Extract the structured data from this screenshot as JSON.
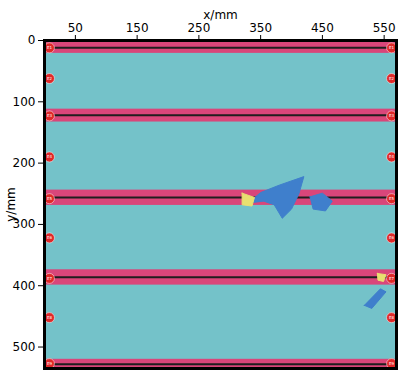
{
  "chart_data": {
    "type": "image",
    "xlabel": "x/mm",
    "ylabel": "y/mm",
    "xlim": [
      0,
      570
    ],
    "ylim": [
      0,
      535
    ],
    "xticks": [
      50,
      150,
      250,
      350,
      450,
      550
    ],
    "yticks": [
      0,
      100,
      200,
      300,
      400,
      500
    ],
    "background": "#74c2c9",
    "bands": {
      "color": "#d9467a",
      "line_color": "#1e1e1e",
      "ranges": [
        [
          3,
          21
        ],
        [
          112,
          133
        ],
        [
          244,
          269
        ],
        [
          374,
          399
        ],
        [
          520,
          535
        ]
      ],
      "lines": [
        12,
        122,
        256,
        386,
        528
      ]
    },
    "regions": [
      {
        "color": "#3f7fcc",
        "points": [
          [
            330,
            265
          ],
          [
            350,
            248
          ],
          [
            380,
            236
          ],
          [
            420,
            222
          ],
          [
            412,
            250
          ],
          [
            400,
            275
          ],
          [
            385,
            290
          ],
          [
            372,
            268
          ],
          [
            355,
            262
          ]
        ]
      },
      {
        "color": "#3f7fcc",
        "points": [
          [
            430,
            255
          ],
          [
            450,
            249
          ],
          [
            466,
            262
          ],
          [
            455,
            278
          ],
          [
            435,
            275
          ]
        ]
      },
      {
        "color": "#e8e070",
        "points": [
          [
            320,
            249
          ],
          [
            340,
            256
          ],
          [
            336,
            270
          ],
          [
            320,
            268
          ]
        ]
      },
      {
        "color": "#3f7fcc",
        "points": [
          [
            518,
            432
          ],
          [
            544,
            405
          ],
          [
            553,
            410
          ],
          [
            530,
            437
          ]
        ]
      },
      {
        "color": "#e8e070",
        "points": [
          [
            539,
            380
          ],
          [
            553,
            382
          ],
          [
            549,
            393
          ],
          [
            540,
            391
          ]
        ]
      }
    ],
    "markers": {
      "color": "#e02828",
      "points": [
        {
          "x": 8,
          "y": 12,
          "label": "E1"
        },
        {
          "x": 8,
          "y": 62,
          "label": "E2"
        },
        {
          "x": 8,
          "y": 123,
          "label": "E3"
        },
        {
          "x": 8,
          "y": 190,
          "label": "E4"
        },
        {
          "x": 8,
          "y": 258,
          "label": "E5"
        },
        {
          "x": 8,
          "y": 322,
          "label": "E6"
        },
        {
          "x": 8,
          "y": 388,
          "label": "E7"
        },
        {
          "x": 8,
          "y": 452,
          "label": "E8"
        },
        {
          "x": 8,
          "y": 527,
          "label": "E9"
        },
        {
          "x": 562,
          "y": 12,
          "label": "E1"
        },
        {
          "x": 562,
          "y": 62,
          "label": "E2"
        },
        {
          "x": 562,
          "y": 123,
          "label": "E3"
        },
        {
          "x": 562,
          "y": 190,
          "label": "E4"
        },
        {
          "x": 562,
          "y": 258,
          "label": "E5"
        },
        {
          "x": 562,
          "y": 322,
          "label": "E6"
        },
        {
          "x": 562,
          "y": 388,
          "label": "E7"
        },
        {
          "x": 562,
          "y": 452,
          "label": "E8"
        },
        {
          "x": 562,
          "y": 527,
          "label": "E9"
        }
      ]
    }
  }
}
